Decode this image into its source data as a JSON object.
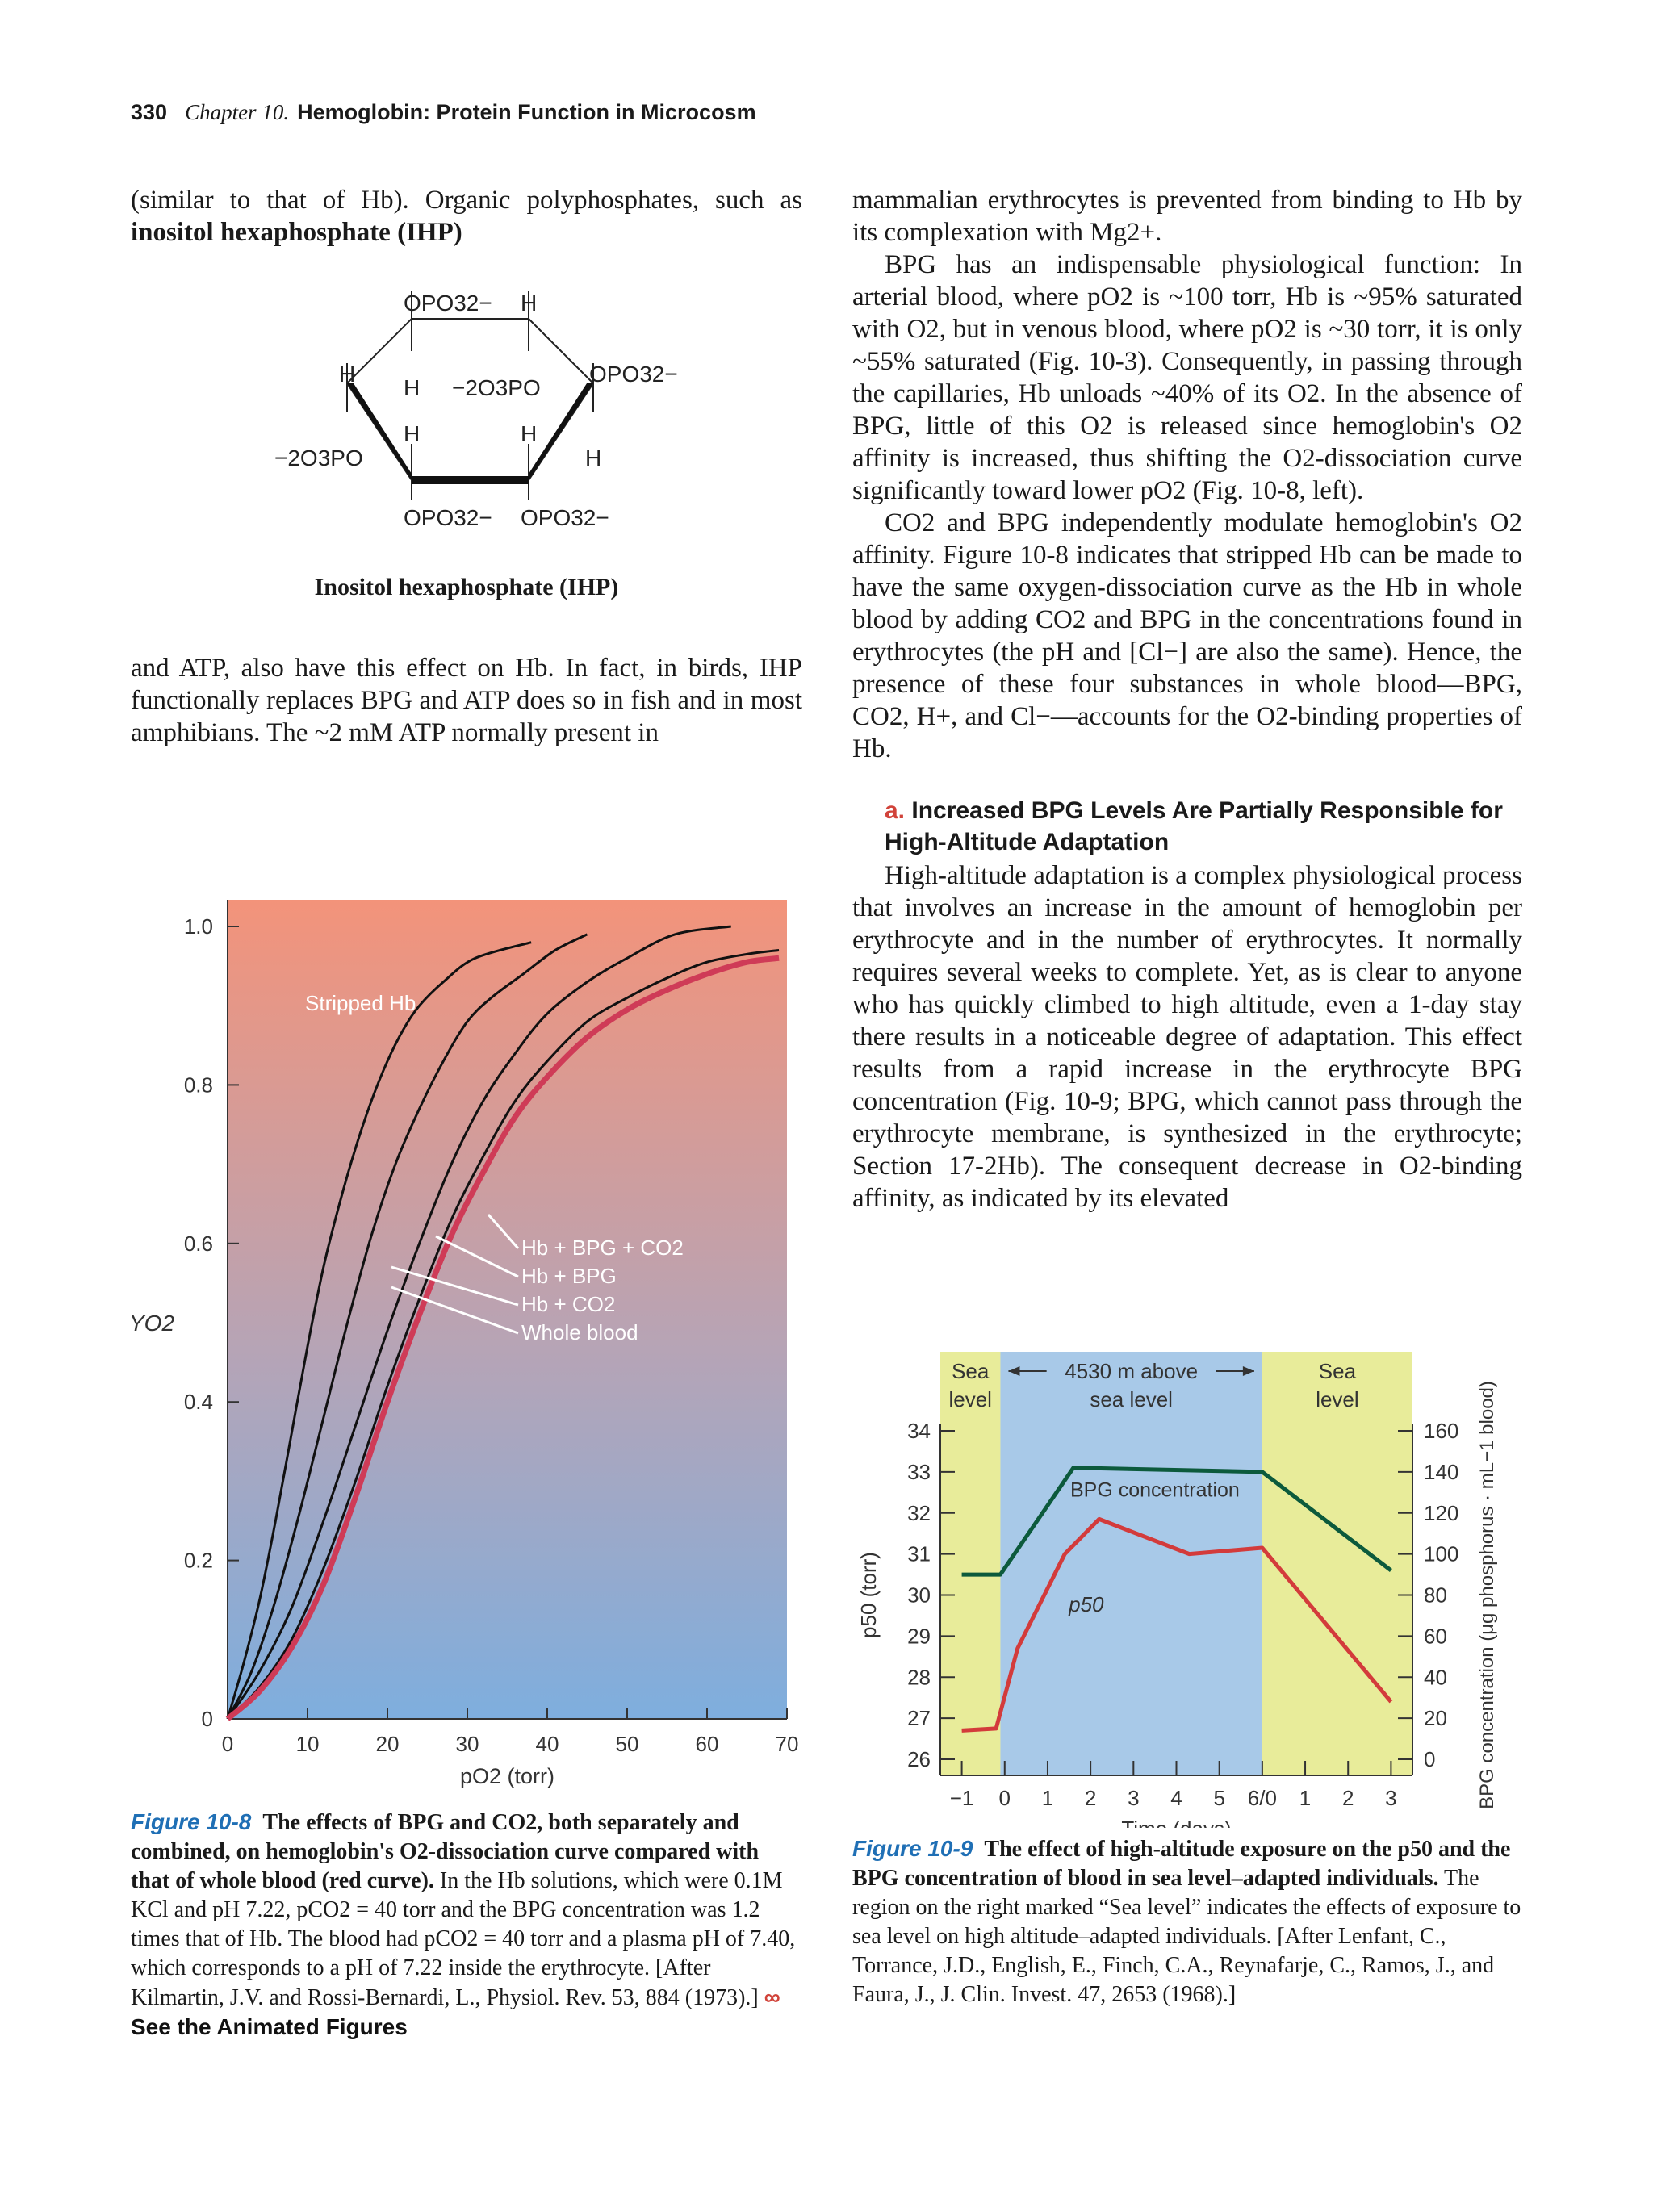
{
  "header": {
    "page_number": "330",
    "chapter": "Chapter 10.",
    "title": "Hemoglobin: Protein Function in Microcosm"
  },
  "left_col": {
    "para1": "(similar to that of Hb). Organic polyphosphates, such as",
    "para1_bold": "inositol hexaphosphate (IHP)",
    "ihp_label": "Inositol hexaphosphate (IHP)",
    "para2": "and ATP, also have this effect on Hb. In fact, in birds, IHP functionally replaces BPG and ATP does so in fish and in most amphibians. The ~2 mM ATP normally present in"
  },
  "right_col": {
    "para1": "mammalian erythrocytes is prevented from binding to Hb by its complexation with Mg2+.",
    "para2": "BPG has an indispensable physiological function: In arterial blood, where pO2 is ~100 torr, Hb is ~95% saturated with O2, but in venous blood, where pO2 is ~30 torr, it is only ~55% saturated (Fig. 10-3). Consequently, in passing through the capillaries, Hb unloads ~40% of its O2. In the absence of BPG, little of this O2 is released since hemoglobin's O2 affinity is increased, thus shifting the O2-dissociation curve significantly toward lower pO2 (Fig. 10-8, left).",
    "para3": "CO2 and BPG independently modulate hemoglobin's O2 affinity. Figure 10-8 indicates that stripped Hb can be made to have the same oxygen-dissociation curve as the Hb in whole blood by adding CO2 and BPG in the concentrations found in erythrocytes (the pH and [Cl−] are also the same). Hence, the presence of these four substances in whole blood—BPG, CO2, H+, and Cl−—accounts for the O2-binding properties of Hb.",
    "section_letter": "a.",
    "section_title": "Increased BPG Levels Are Partially Responsible for High-Altitude Adaptation",
    "para4": "High-altitude adaptation is a complex physiological process that involves an increase in the amount of hemoglobin per erythrocyte and in the number of erythrocytes. It normally requires several weeks to complete. Yet, as is clear to anyone who has quickly climbed to high altitude, even a 1-day stay there results in a noticeable degree of adaptation. This effect results from a rapid increase in the erythrocyte BPG concentration (Fig. 10-9; BPG, which cannot pass through the erythrocyte membrane, is synthesized in the erythrocyte; Section 17-2Hb). The consequent decrease in O2-binding affinity, as indicated by its elevated"
  },
  "fig8_caption": {
    "label": "Figure 10-8",
    "bold": "The effects of BPG and CO2, both separately and combined, on hemoglobin's O2-dissociation curve compared with that of whole blood (red curve).",
    "text": "In the Hb solutions, which were 0.1M KCl and pH 7.22, pCO2 = 40 torr and the BPG concentration was 1.2 times that of Hb. The blood had pCO2 = 40 torr and a plasma pH of 7.40, which corresponds to a pH of 7.22 inside the erythrocyte. [After Kilmartin, J.V. and Rossi-Bernardi, L., Physiol. Rev. 53, 884 (1973).]",
    "animated": "See the Animated Figures"
  },
  "fig9_caption": {
    "label": "Figure 10-9",
    "bold": "The effect of high-altitude exposure on the p50 and the BPG concentration of blood in sea level–adapted individuals.",
    "text": "The region on the right marked “Sea level” indicates the effects of exposure to sea level on high altitude–adapted individuals. [After Lenfant, C., Torrance, J.D., English, E., Finch, C.A., Reynafarje, C., Ramos, J., and Faura, J., J. Clin. Invest. 47, 2653 (1968).]"
  },
  "ihp": {
    "labels": [
      "OPO32−",
      "H",
      "H",
      "OPO32−",
      "H",
      "−2O3PO",
      "H",
      "H",
      "−2O3PO",
      "H",
      "OPO32−",
      "OPO32−"
    ]
  },
  "chart_data": [
    {
      "type": "line",
      "xlabel": "pO2 (torr)",
      "ylabel": "YO2",
      "xlim": [
        0,
        70
      ],
      "ylim": [
        0,
        1.0
      ],
      "xticks": [
        "0",
        "10",
        "20",
        "30",
        "40",
        "50",
        "60",
        "70"
      ],
      "yticks": [
        "0",
        "0.2",
        "0.4",
        "0.6",
        "0.8",
        "1.0"
      ],
      "series": [
        {
          "name": "Stripped Hb",
          "color": "#111111",
          "points": [
            [
              0,
              0
            ],
            [
              2,
              0.07
            ],
            [
              4,
              0.15
            ],
            [
              6,
              0.25
            ],
            [
              8,
              0.36
            ],
            [
              10,
              0.47
            ],
            [
              12,
              0.57
            ],
            [
              14,
              0.65
            ],
            [
              16,
              0.72
            ],
            [
              18,
              0.78
            ],
            [
              20,
              0.83
            ],
            [
              22,
              0.87
            ],
            [
              24,
              0.9
            ],
            [
              27,
              0.93
            ],
            [
              31,
              0.96
            ],
            [
              38,
              0.98
            ]
          ]
        },
        {
          "name": "Hb + CO2",
          "color": "#111111",
          "points": [
            [
              0,
              0
            ],
            [
              3,
              0.06
            ],
            [
              6,
              0.15
            ],
            [
              9,
              0.26
            ],
            [
              12,
              0.38
            ],
            [
              15,
              0.5
            ],
            [
              18,
              0.61
            ],
            [
              21,
              0.7
            ],
            [
              24,
              0.77
            ],
            [
              27,
              0.83
            ],
            [
              30,
              0.88
            ],
            [
              33,
              0.91
            ],
            [
              37,
              0.94
            ],
            [
              41,
              0.97
            ],
            [
              45,
              0.99
            ]
          ]
        },
        {
          "name": "Hb + BPG",
          "color": "#111111",
          "points": [
            [
              0,
              0
            ],
            [
              4,
              0.06
            ],
            [
              8,
              0.14
            ],
            [
              12,
              0.25
            ],
            [
              16,
              0.37
            ],
            [
              20,
              0.49
            ],
            [
              24,
              0.6
            ],
            [
              28,
              0.7
            ],
            [
              32,
              0.78
            ],
            [
              36,
              0.84
            ],
            [
              40,
              0.89
            ],
            [
              45,
              0.93
            ],
            [
              50,
              0.96
            ],
            [
              56,
              0.99
            ],
            [
              63,
              1.0
            ]
          ]
        },
        {
          "name": "Hb + BPG + CO2",
          "color": "#111111",
          "points": [
            [
              0,
              0
            ],
            [
              4,
              0.04
            ],
            [
              8,
              0.1
            ],
            [
              12,
              0.19
            ],
            [
              16,
              0.3
            ],
            [
              20,
              0.42
            ],
            [
              24,
              0.53
            ],
            [
              28,
              0.63
            ],
            [
              32,
              0.71
            ],
            [
              36,
              0.78
            ],
            [
              40,
              0.83
            ],
            [
              45,
              0.88
            ],
            [
              50,
              0.91
            ],
            [
              55,
              0.935
            ],
            [
              60,
              0.955
            ],
            [
              65,
              0.965
            ],
            [
              69,
              0.97
            ]
          ]
        },
        {
          "name": "Whole blood",
          "color": "#cf3b57",
          "points": [
            [
              0,
              0
            ],
            [
              4,
              0.035
            ],
            [
              8,
              0.09
            ],
            [
              12,
              0.17
            ],
            [
              16,
              0.28
            ],
            [
              20,
              0.4
            ],
            [
              24,
              0.51
            ],
            [
              28,
              0.61
            ],
            [
              32,
              0.69
            ],
            [
              36,
              0.76
            ],
            [
              40,
              0.81
            ],
            [
              45,
              0.86
            ],
            [
              50,
              0.895
            ],
            [
              55,
              0.92
            ],
            [
              60,
              0.94
            ],
            [
              65,
              0.955
            ],
            [
              69,
              0.96
            ]
          ]
        }
      ],
      "labels": [
        "Stripped Hb",
        "Hb + BPG + CO2",
        "Hb + BPG",
        "Hb + CO2",
        "Whole blood"
      ]
    },
    {
      "type": "line",
      "xlabel": "Time (days)",
      "ylabel_left": "p50 (torr)",
      "ylabel_right": "BPG concentration (μg phosphorus · mL−1 blood)",
      "x": [
        -1,
        0,
        1,
        2,
        3,
        4,
        5,
        6,
        7,
        8,
        9
      ],
      "xticks": [
        "−1",
        "0",
        "1",
        "2",
        "3",
        "4",
        "5",
        "6/0",
        "1",
        "2",
        "3"
      ],
      "ylim_left": [
        26,
        34
      ],
      "yticks_left": [
        "26",
        "27",
        "28",
        "29",
        "30",
        "31",
        "32",
        "33",
        "34"
      ],
      "ylim_right": [
        0,
        160
      ],
      "yticks_right": [
        "0",
        "20",
        "40",
        "60",
        "80",
        "100",
        "120",
        "140",
        "160"
      ],
      "regions": [
        {
          "label_line1": "Sea",
          "label_line2": "level",
          "from": -1.5,
          "to": -0.1,
          "color": "#e8ec9a"
        },
        {
          "label_line1": "4530 m above",
          "label_line2": "sea level",
          "from": -0.1,
          "to": 6,
          "color": "#a8c9e8"
        },
        {
          "label_line1": "Sea",
          "label_line2": "level",
          "from": 6,
          "to": 9.5,
          "color": "#e8ec9a"
        }
      ],
      "series": [
        {
          "name": "BPG concentration",
          "axis": "right",
          "color": "#0c5a3c",
          "points": [
            [
              -1,
              90
            ],
            [
              -0.1,
              90
            ],
            [
              1.6,
              142
            ],
            [
              6,
              140
            ],
            [
              9,
              92
            ]
          ]
        },
        {
          "name": "p50",
          "axis": "left",
          "color": "#d33b3b",
          "points": [
            [
              -1,
              26.7
            ],
            [
              -0.2,
              26.75
            ],
            [
              0.3,
              28.7
            ],
            [
              1.4,
              31
            ],
            [
              2.2,
              31.85
            ],
            [
              4.3,
              31
            ],
            [
              6,
              31.15
            ],
            [
              9,
              27.4
            ]
          ]
        }
      ]
    }
  ]
}
